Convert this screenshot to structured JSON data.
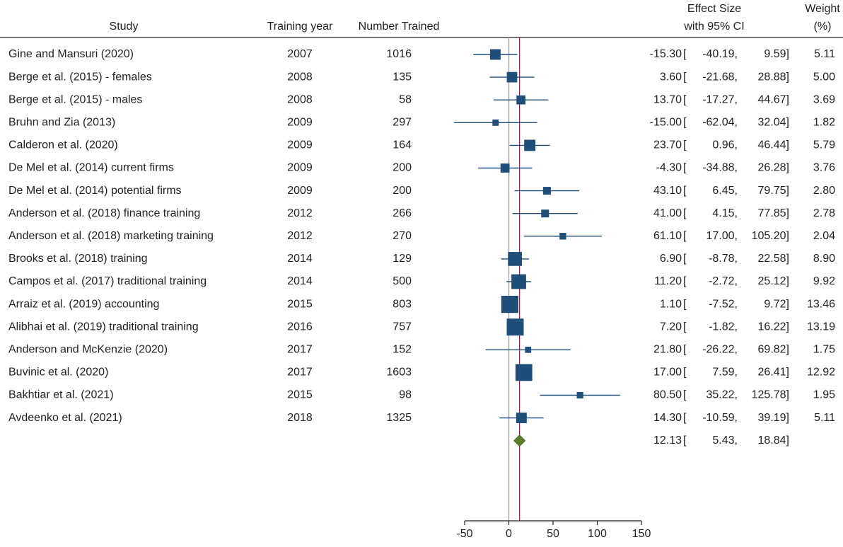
{
  "headers": {
    "study": "Study",
    "year": "Training year",
    "n": "Number Trained",
    "effect_line1": "Effect Size",
    "effect_line2": "with 95% CI",
    "weight_line1": "Weight",
    "weight_line2": "(%)"
  },
  "chart_data": {
    "type": "forest",
    "xlim": [
      -50,
      150
    ],
    "xticks": [
      -50,
      0,
      50,
      100,
      150
    ],
    "null_line": 0,
    "pooled_line": 12.13,
    "studies": [
      {
        "study": "Gine and Mansuri (2020)",
        "year": "2007",
        "n": "1016",
        "es": -15.3,
        "lo": -40.19,
        "hi": 9.59,
        "es_str": "-15.30",
        "lo_str": "-40.19,",
        "hi_str": "9.59]",
        "weight": "5.11",
        "w": 5.11
      },
      {
        "study": "Berge et al. (2015) - females",
        "year": "2008",
        "n": "135",
        "es": 3.6,
        "lo": -21.68,
        "hi": 28.88,
        "es_str": "3.60",
        "lo_str": "-21.68,",
        "hi_str": "28.88]",
        "weight": "5.00",
        "w": 5.0
      },
      {
        "study": "Berge et al. (2015) - males",
        "year": "2008",
        "n": "58",
        "es": 13.7,
        "lo": -17.27,
        "hi": 44.67,
        "es_str": "13.70",
        "lo_str": "-17.27,",
        "hi_str": "44.67]",
        "weight": "3.69",
        "w": 3.69
      },
      {
        "study": "Bruhn and Zia (2013)",
        "year": "2009",
        "n": "297",
        "es": -15.0,
        "lo": -62.04,
        "hi": 32.04,
        "es_str": "-15.00",
        "lo_str": "-62.04,",
        "hi_str": "32.04]",
        "weight": "1.82",
        "w": 1.82
      },
      {
        "study": "Calderon et al. (2020)",
        "year": "2009",
        "n": "164",
        "es": 23.7,
        "lo": 0.96,
        "hi": 46.44,
        "es_str": "23.70",
        "lo_str": "0.96,",
        "hi_str": "46.44]",
        "weight": "5.79",
        "w": 5.79
      },
      {
        "study": "De Mel et al. (2014) current firms",
        "year": "2009",
        "n": "200",
        "es": -4.3,
        "lo": -34.88,
        "hi": 26.28,
        "es_str": "-4.30",
        "lo_str": "-34.88,",
        "hi_str": "26.28]",
        "weight": "3.76",
        "w": 3.76
      },
      {
        "study": "De Mel et al. (2014) potential firms",
        "year": "2009",
        "n": "200",
        "es": 43.1,
        "lo": 6.45,
        "hi": 79.75,
        "es_str": "43.10",
        "lo_str": "6.45,",
        "hi_str": "79.75]",
        "weight": "2.80",
        "w": 2.8
      },
      {
        "study": "Anderson et al. (2018) finance training",
        "year": "2012",
        "n": "266",
        "es": 41.0,
        "lo": 4.15,
        "hi": 77.85,
        "es_str": "41.00",
        "lo_str": "4.15,",
        "hi_str": "77.85]",
        "weight": "2.78",
        "w": 2.78
      },
      {
        "study": "Anderson et al. (2018) marketing training",
        "year": "2012",
        "n": "270",
        "es": 61.1,
        "lo": 17.0,
        "hi": 105.2,
        "es_str": "61.10",
        "lo_str": "17.00,",
        "hi_str": "105.20]",
        "weight": "2.04",
        "w": 2.04
      },
      {
        "study": "Brooks et al. (2018) training",
        "year": "2014",
        "n": "129",
        "es": 6.9,
        "lo": -8.78,
        "hi": 22.58,
        "es_str": "6.90",
        "lo_str": "-8.78,",
        "hi_str": "22.58]",
        "weight": "8.90",
        "w": 8.9
      },
      {
        "study": "Campos et al. (2017) traditional training",
        "year": "2014",
        "n": "500",
        "es": 11.2,
        "lo": -2.72,
        "hi": 25.12,
        "es_str": "11.20",
        "lo_str": "-2.72,",
        "hi_str": "25.12]",
        "weight": "9.92",
        "w": 9.92
      },
      {
        "study": "Arraiz et al. (2019) accounting",
        "year": "2015",
        "n": "803",
        "es": 1.1,
        "lo": -7.52,
        "hi": 9.72,
        "es_str": "1.10",
        "lo_str": "-7.52,",
        "hi_str": "9.72]",
        "weight": "13.46",
        "w": 13.46
      },
      {
        "study": "Alibhai et al. (2019) traditional training",
        "year": "2016",
        "n": "757",
        "es": 7.2,
        "lo": -1.82,
        "hi": 16.22,
        "es_str": "7.20",
        "lo_str": "-1.82,",
        "hi_str": "16.22]",
        "weight": "13.19",
        "w": 13.19
      },
      {
        "study": "Anderson and McKenzie (2020)",
        "year": "2017",
        "n": "152",
        "es": 21.8,
        "lo": -26.22,
        "hi": 69.82,
        "es_str": "21.80",
        "lo_str": "-26.22,",
        "hi_str": "69.82]",
        "weight": "1.75",
        "w": 1.75
      },
      {
        "study": "Buvinic et al. (2020)",
        "year": "2017",
        "n": "1603",
        "es": 17.0,
        "lo": 7.59,
        "hi": 26.41,
        "es_str": "17.00",
        "lo_str": "7.59,",
        "hi_str": "26.41]",
        "weight": "12.92",
        "w": 12.92
      },
      {
        "study": "Bakhtiar et al. (2021)",
        "year": "2015",
        "n": "98",
        "es": 80.5,
        "lo": 35.22,
        "hi": 125.78,
        "es_str": "80.50",
        "lo_str": "35.22,",
        "hi_str": "125.78]",
        "weight": "1.95",
        "w": 1.95
      },
      {
        "study": "Avdeenko et al. (2021)",
        "year": "2018",
        "n": "1325",
        "es": 14.3,
        "lo": -10.59,
        "hi": 39.19,
        "es_str": "14.30",
        "lo_str": "-10.59,",
        "hi_str": "39.19]",
        "weight": "5.11",
        "w": 5.11
      }
    ],
    "pooled": {
      "es": 12.13,
      "lo": 5.43,
      "hi": 18.84,
      "es_str": "12.13",
      "lo_str": "5.43,",
      "hi_str": "18.84]"
    },
    "colors": {
      "marker": "#1f4e79",
      "ci": "#1f4e79",
      "diamond": "#5a7d2e",
      "pooled_line": "#8b1a4a",
      "null_line": "#a0a0b8",
      "text": "#222222"
    }
  }
}
